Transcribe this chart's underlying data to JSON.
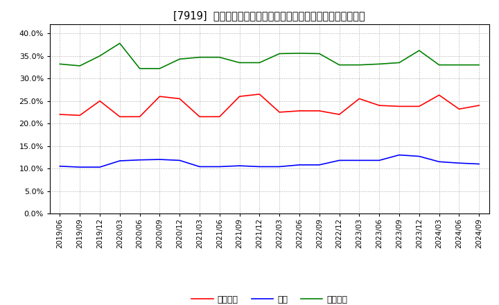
{
  "title": "[7919]  売上債権、在庫、買入債務の総資産に対する比率の推移",
  "ylim": [
    0.0,
    0.42
  ],
  "yticks": [
    0.0,
    0.05,
    0.1,
    0.15,
    0.2,
    0.25,
    0.3,
    0.35,
    0.4
  ],
  "legend_labels": [
    "売上債権",
    "在庫",
    "買入債務"
  ],
  "line_colors": [
    "#ff0000",
    "#0000ff",
    "#008000"
  ],
  "dates": [
    "2019/06",
    "2019/09",
    "2019/12",
    "2020/03",
    "2020/06",
    "2020/09",
    "2020/12",
    "2021/03",
    "2021/06",
    "2021/09",
    "2021/12",
    "2022/03",
    "2022/06",
    "2022/09",
    "2022/12",
    "2023/03",
    "2023/06",
    "2023/09",
    "2023/12",
    "2024/03",
    "2024/06",
    "2024/09"
  ],
  "series_urikake": [
    0.22,
    0.218,
    0.25,
    0.215,
    0.215,
    0.26,
    0.255,
    0.215,
    0.215,
    0.26,
    0.265,
    0.225,
    0.228,
    0.228,
    0.22,
    0.255,
    0.24,
    0.238,
    0.238,
    0.263,
    0.232,
    0.24
  ],
  "series_zaiko": [
    0.105,
    0.103,
    0.103,
    0.117,
    0.119,
    0.12,
    0.118,
    0.104,
    0.104,
    0.106,
    0.104,
    0.104,
    0.108,
    0.108,
    0.118,
    0.118,
    0.118,
    0.13,
    0.127,
    0.115,
    0.112,
    0.11
  ],
  "series_kainyu": [
    0.332,
    0.328,
    0.35,
    0.378,
    0.322,
    0.322,
    0.343,
    0.347,
    0.347,
    0.335,
    0.335,
    0.355,
    0.356,
    0.355,
    0.33,
    0.33,
    0.332,
    0.335,
    0.362,
    0.33,
    0.33,
    0.33
  ],
  "background_color": "#ffffff",
  "plot_bg_color": "#ffffff",
  "grid_color": "#aaaaaa",
  "title_fontsize": 10.5,
  "tick_fontsize": 7.5,
  "legend_fontsize": 9
}
